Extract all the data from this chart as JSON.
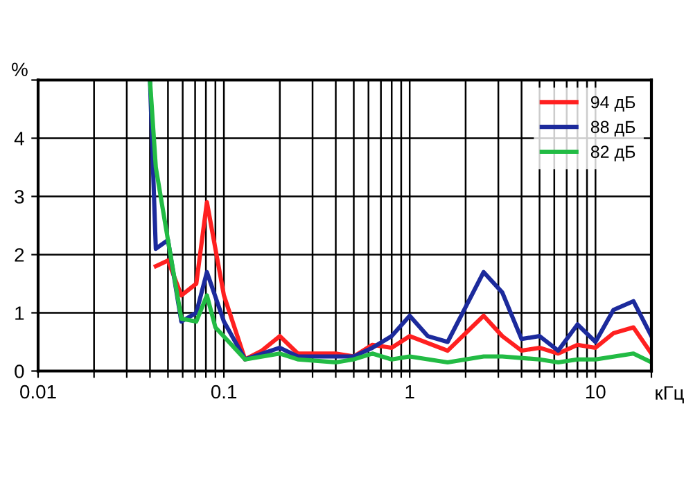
{
  "chart_data": {
    "type": "line",
    "xlabel": "кГц",
    "ylabel": "%",
    "log": "x",
    "xlim": [
      0.01,
      20
    ],
    "ylim": [
      0,
      5
    ],
    "xticks": [
      0.01,
      {
        "value": 0.02,
        "label": null
      },
      {
        "value": 0.03,
        "label": null
      },
      {
        "value": 0.04,
        "label": null
      },
      {
        "value": 0.05,
        "label": null
      },
      {
        "value": 0.06,
        "label": null
      },
      {
        "value": 0.07,
        "label": null
      },
      {
        "value": 0.08,
        "label": null
      },
      {
        "value": 0.09,
        "label": null
      },
      0.1,
      {
        "value": 0.2,
        "label": null
      },
      {
        "value": 0.3,
        "label": null
      },
      {
        "value": 0.4,
        "label": null
      },
      {
        "value": 0.5,
        "label": null
      },
      {
        "value": 0.6,
        "label": null
      },
      {
        "value": 0.7,
        "label": null
      },
      {
        "value": 0.8,
        "label": null
      },
      {
        "value": 0.9,
        "label": null
      },
      1,
      {
        "value": 2,
        "label": null
      },
      {
        "value": 3,
        "label": null
      },
      {
        "value": 4,
        "label": null
      },
      {
        "value": 5,
        "label": null
      },
      {
        "value": 6,
        "label": null
      },
      {
        "value": 7,
        "label": null
      },
      {
        "value": 8,
        "label": null
      },
      {
        "value": 9,
        "label": null
      },
      10,
      {
        "value": 20,
        "label": null
      }
    ],
    "yticks": [
      0,
      1,
      2,
      3,
      4,
      {
        "value": 5,
        "label": null
      }
    ],
    "grid": true,
    "legend": "top right",
    "line_style": "solid",
    "series": [
      {
        "name": "94 дБ",
        "color": "#ff2020",
        "x": [
          0.043,
          0.05,
          0.059,
          0.071,
          0.081,
          0.1,
          0.13,
          0.16,
          0.2,
          0.25,
          0.315,
          0.4,
          0.5,
          0.63,
          0.8,
          1,
          1.6,
          2.5,
          3.15,
          4,
          5,
          6.3,
          8,
          10,
          12.5,
          16,
          20
        ],
        "values": [
          1.8,
          1.9,
          1.3,
          1.5,
          2.9,
          1.3,
          0.2,
          0.35,
          0.6,
          0.3,
          0.3,
          0.3,
          0.25,
          0.45,
          0.4,
          0.6,
          0.35,
          0.95,
          0.6,
          0.35,
          0.4,
          0.3,
          0.45,
          0.4,
          0.65,
          0.75,
          0.3
        ]
      },
      {
        "name": "88 дБ",
        "color": "#1c2a9c",
        "x": [
          0.04,
          0.043,
          0.05,
          0.059,
          0.071,
          0.081,
          0.1,
          0.13,
          0.2,
          0.25,
          0.4,
          0.5,
          0.63,
          0.8,
          1,
          1.25,
          1.6,
          2,
          2.5,
          3.15,
          4,
          5,
          6.3,
          8,
          10,
          12.5,
          16,
          20
        ],
        "values": [
          5,
          2.1,
          2.25,
          0.85,
          1.0,
          1.7,
          0.85,
          0.2,
          0.4,
          0.25,
          0.25,
          0.25,
          0.4,
          0.6,
          0.95,
          0.6,
          0.5,
          1.1,
          1.7,
          1.35,
          0.55,
          0.6,
          0.35,
          0.8,
          0.5,
          1.05,
          1.2,
          0.6
        ]
      },
      {
        "name": "82 дБ",
        "color": "#22bb44",
        "x": [
          0.04,
          0.043,
          0.05,
          0.059,
          0.071,
          0.081,
          0.09,
          0.13,
          0.2,
          0.25,
          0.4,
          0.5,
          0.63,
          0.8,
          1,
          1.6,
          2.5,
          3.15,
          5,
          6.3,
          8,
          10,
          16,
          20
        ],
        "values": [
          5,
          3.5,
          2.25,
          0.9,
          0.85,
          1.3,
          0.75,
          0.2,
          0.3,
          0.2,
          0.15,
          0.2,
          0.3,
          0.2,
          0.25,
          0.15,
          0.25,
          0.25,
          0.2,
          0.15,
          0.2,
          0.2,
          0.3,
          0.15
        ]
      }
    ]
  }
}
